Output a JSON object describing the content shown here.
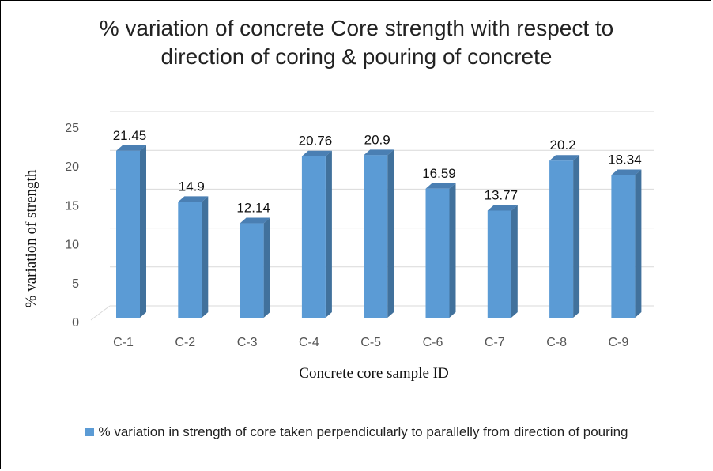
{
  "chart_data": {
    "type": "bar",
    "title_lines": [
      "% variation of concrete Core strength with respect to",
      "direction of coring & pouring of concrete"
    ],
    "categories": [
      "C-1",
      "C-2",
      "C-3",
      "C-4",
      "C-5",
      "C-6",
      "C-7",
      "C-8",
      "C-9"
    ],
    "series": [
      {
        "name": "% variation in strength of core taken perpendicularly to parallelly from  direction of pouring",
        "values": [
          21.45,
          14.9,
          12.14,
          20.76,
          20.9,
          16.59,
          13.77,
          20.2,
          18.34
        ],
        "labels": [
          "21.45",
          "14.9",
          "12.14",
          "20.76",
          "20.9",
          "16.59",
          "13.77",
          "20.2",
          "18.34"
        ]
      }
    ],
    "xlabel": "Concrete core sample ID",
    "ylabel": "% variation of strength",
    "ylim": [
      0,
      25
    ],
    "yticks": [
      "0",
      "5",
      "10",
      "15",
      "20",
      "25"
    ],
    "grid": true,
    "legend_position": "bottom",
    "colors": {
      "bar_front": "#5b9bd5",
      "bar_side": "#41719c",
      "bar_top": "#4a7fb3",
      "grid": "#d9d9d9"
    }
  }
}
